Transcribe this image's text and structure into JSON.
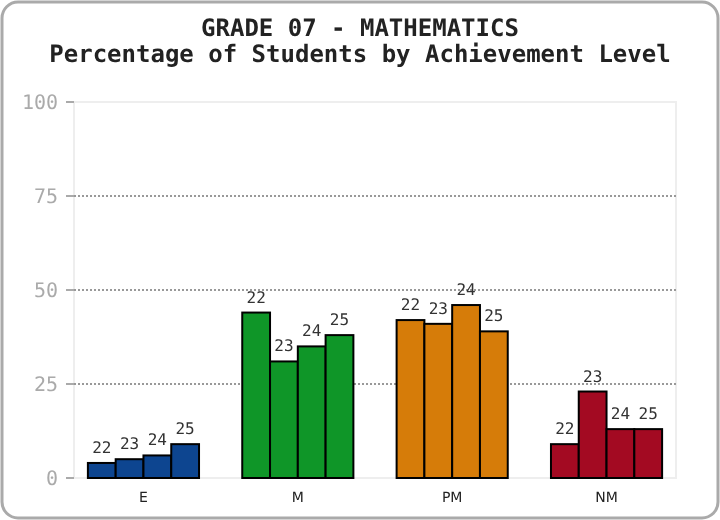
{
  "chart_data": {
    "type": "bar",
    "title": "GRADE 07 - MATHEMATICS",
    "subtitle": "Percentage of Students by Achievement Level",
    "categories": [
      "E",
      "M",
      "PM",
      "NM"
    ],
    "series": [
      {
        "name": "22",
        "colors": [
          "#0d4590",
          "#0f9628",
          "#d67c09",
          "#a30a22"
        ],
        "values": [
          4,
          44,
          42,
          9
        ]
      },
      {
        "name": "23",
        "colors": [
          "#0d4590",
          "#0f9628",
          "#d67c09",
          "#a30a22"
        ],
        "values": [
          5,
          31,
          41,
          23
        ]
      },
      {
        "name": "24",
        "colors": [
          "#0d4590",
          "#0f9628",
          "#d67c09",
          "#a30a22"
        ],
        "values": [
          6,
          35,
          46,
          13
        ]
      },
      {
        "name": "25",
        "colors": [
          "#0d4590",
          "#0f9628",
          "#d67c09",
          "#a30a22"
        ],
        "values": [
          9,
          38,
          39,
          13
        ]
      }
    ],
    "ylim": [
      0,
      100
    ],
    "yticks": [
      0,
      25,
      50,
      75,
      100
    ],
    "grid": "y",
    "legend": false
  }
}
